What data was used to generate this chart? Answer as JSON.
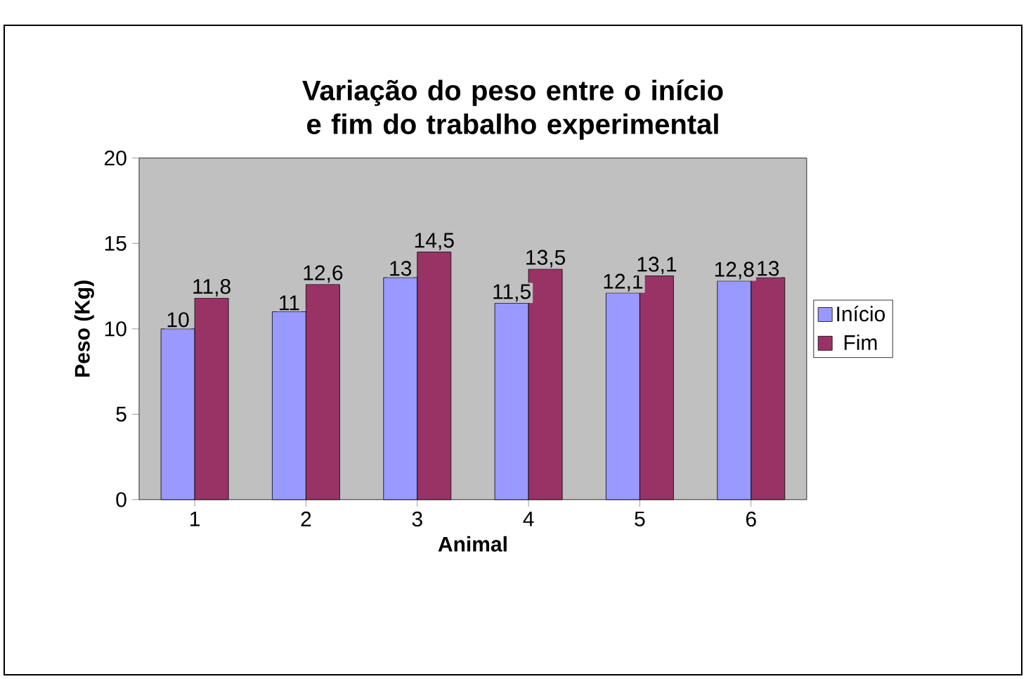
{
  "chart_data": {
    "type": "bar",
    "title": "Variação do peso entre o início e fim do trabalho experimental",
    "xlabel": "Animal",
    "ylabel": "Peso (Kg)",
    "categories": [
      "1",
      "2",
      "3",
      "4",
      "5",
      "6"
    ],
    "series": [
      {
        "name": "Início",
        "color": "#9999ff",
        "values": [
          10,
          11,
          13,
          11.5,
          12.1,
          12.8
        ],
        "value_labels": [
          "10",
          "11",
          "13",
          "11,5",
          "12,1",
          "12,8"
        ]
      },
      {
        "name": "Fim",
        "color": "#993366",
        "values": [
          11.8,
          12.6,
          14.5,
          13.5,
          13.1,
          13
        ],
        "value_labels": [
          "11,8",
          "12,6",
          "14,5",
          "13,5",
          "13,1",
          "13"
        ]
      }
    ],
    "ylim": [
      0,
      20
    ],
    "yticks": [
      0,
      5,
      10,
      15,
      20
    ],
    "grid": false,
    "legend": "right"
  }
}
